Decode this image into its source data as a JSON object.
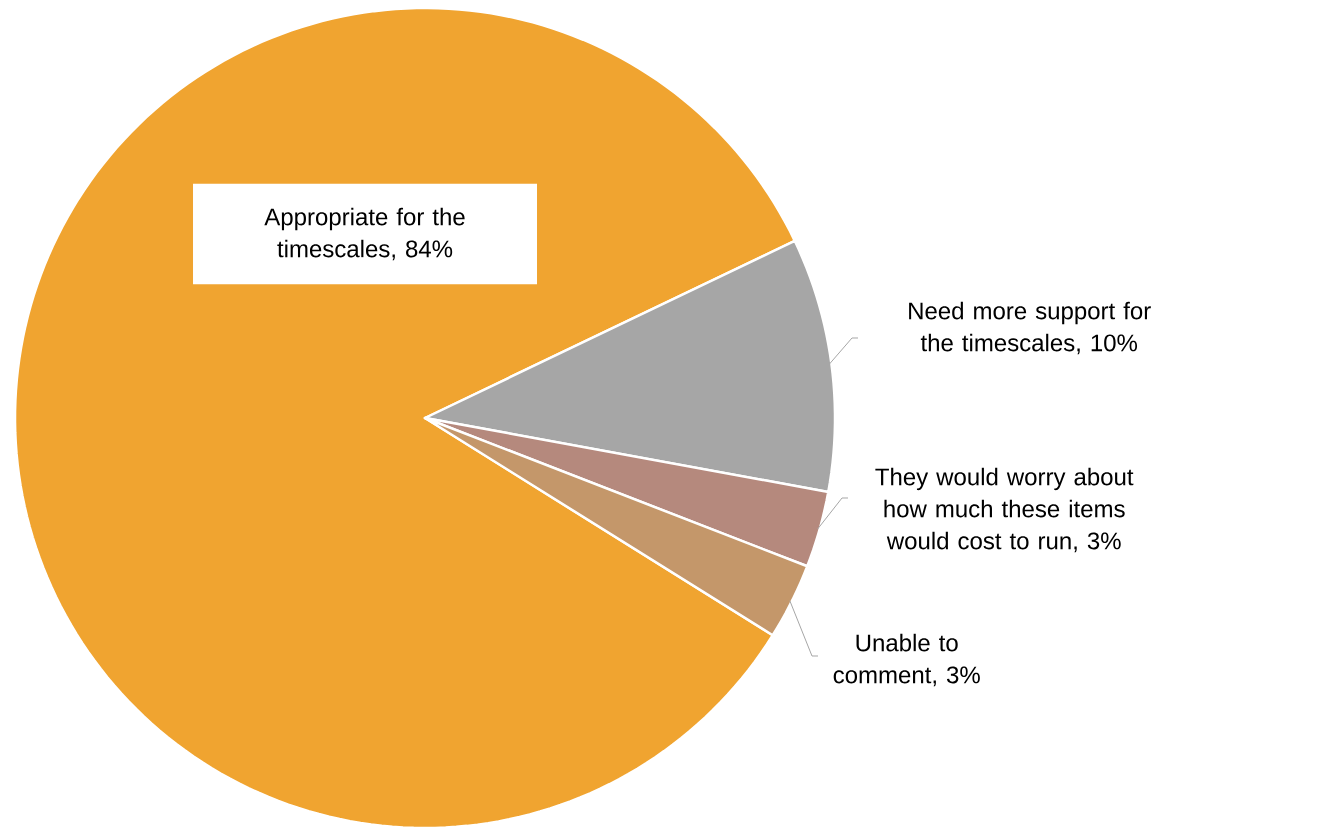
{
  "chart_data": {
    "type": "pie",
    "categories": [
      "Appropriate for the timescales, 84%",
      "Need more support for the timescales, 10%",
      "They would worry about how much these items would cost to run, 3%",
      "Unable to comment, 3%"
    ],
    "values": [
      84,
      10,
      3,
      3
    ],
    "colors": [
      "#f0a430",
      "#a6a6a6",
      "#b5897d",
      "#c4976a"
    ]
  }
}
